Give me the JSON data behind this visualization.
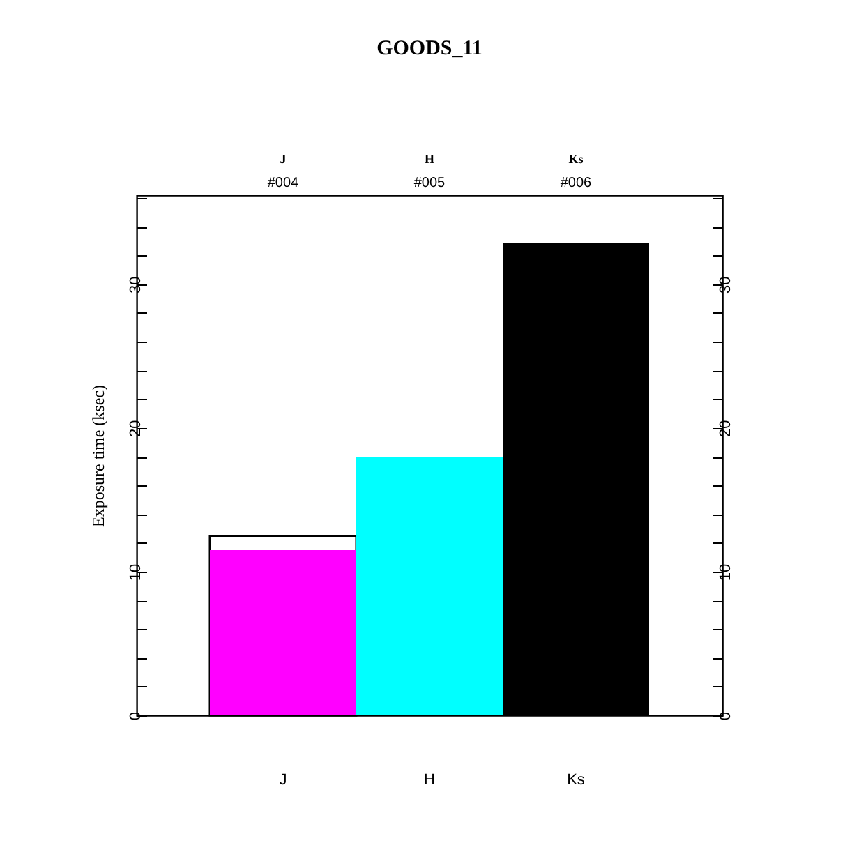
{
  "chart_data": {
    "type": "bar",
    "title": "GOODS_11",
    "ylabel": "Exposure time (ksec)",
    "categories": [
      "J",
      "H",
      "Ks"
    ],
    "series": [
      {
        "colors": [
          "#ffffff",
          null,
          null
        ],
        "values": [
          12.5,
          null,
          null
        ]
      },
      {
        "colors": [
          "#ff00ff",
          "#00ffff",
          "#000000"
        ],
        "values": [
          11.5,
          18.0,
          32.9
        ]
      }
    ],
    "ylim": [
      0,
      36.2
    ],
    "yticks": [
      0,
      {
        "value": 2,
        "label": null
      },
      {
        "value": 4,
        "label": null
      },
      {
        "value": 6,
        "label": null
      },
      {
        "value": 8,
        "label": null
      },
      10,
      {
        "value": 12,
        "label": null
      },
      {
        "value": 14,
        "label": null
      },
      {
        "value": 16,
        "label": null
      },
      {
        "value": 18,
        "label": null
      },
      20,
      {
        "value": 22,
        "label": null
      },
      {
        "value": 24,
        "label": null
      },
      {
        "value": 26,
        "label": null
      },
      {
        "value": 28,
        "label": null
      },
      30,
      {
        "value": 32,
        "label": null
      },
      {
        "value": 34,
        "label": null
      },
      {
        "value": 36,
        "label": null
      }
    ],
    "y2lim": [
      0,
      36.2
    ],
    "y2ticks": [
      0,
      {
        "value": 2,
        "label": null
      },
      {
        "value": 4,
        "label": null
      },
      {
        "value": 6,
        "label": null
      },
      {
        "value": 8,
        "label": null
      },
      10,
      {
        "value": 12,
        "label": null
      },
      {
        "value": 14,
        "label": null
      },
      {
        "value": 16,
        "label": null
      },
      {
        "value": 18,
        "label": null
      },
      20,
      {
        "value": 22,
        "label": null
      },
      {
        "value": 24,
        "label": null
      },
      {
        "value": 26,
        "label": null
      },
      {
        "value": 28,
        "label": null
      },
      30,
      {
        "value": 32,
        "label": null
      },
      {
        "value": 34,
        "label": null
      },
      {
        "value": 36,
        "label": null
      }
    ],
    "annotations": [
      "J",
      "#004",
      "H",
      "#005",
      "Ks",
      "#006"
    ],
    "grid": false
  }
}
